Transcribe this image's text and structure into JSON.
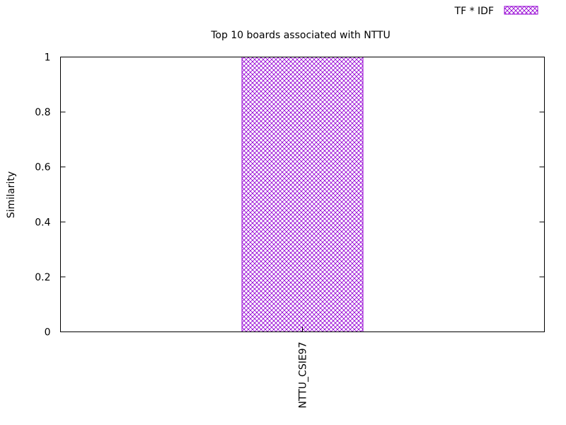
{
  "chart_data": {
    "type": "bar",
    "title": "Top 10 boards associated with NTTU",
    "xlabel": "",
    "ylabel": "Similarity",
    "categories": [
      "NTTU_CSIE97"
    ],
    "series": [
      {
        "name": "TF * IDF",
        "values": [
          1.0
        ]
      }
    ],
    "ylim": [
      0,
      1
    ],
    "yticks": [
      "0",
      "0.2",
      "0.4",
      "0.6",
      "0.8",
      "1"
    ],
    "grid": false,
    "legend": "top-right",
    "bar_color": "#9400d3",
    "bar_pattern": "crosshatch"
  }
}
